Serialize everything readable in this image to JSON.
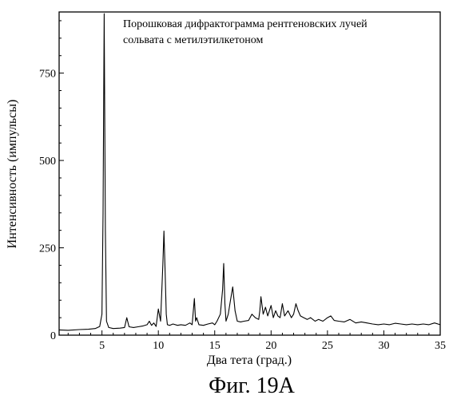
{
  "chart_data": {
    "type": "line",
    "annotation_lines": [
      "Порошковая дифрактограмма рентгеновских лучей",
      "сольвата с метилэтилкетоном"
    ],
    "xlabel": "Два тета (град.)",
    "ylabel": "Интенсивность (импульсы)",
    "figure_caption": "Фиг. 19А",
    "xlim": [
      1.2,
      35
    ],
    "ylim": [
      0,
      925
    ],
    "x_ticks": [
      5,
      10,
      15,
      20,
      25,
      30,
      35
    ],
    "y_ticks": [
      0,
      250,
      500,
      750
    ],
    "grid": false,
    "series": [
      {
        "color": "#000000",
        "x": [
          1.2,
          2.0,
          3.0,
          3.8,
          4.4,
          4.8,
          5.0,
          5.1,
          5.2,
          5.3,
          5.4,
          5.6,
          6.0,
          6.6,
          7.0,
          7.2,
          7.4,
          7.8,
          8.2,
          8.6,
          9.0,
          9.2,
          9.4,
          9.6,
          9.8,
          10.0,
          10.2,
          10.4,
          10.5,
          10.6,
          10.7,
          10.8,
          11.0,
          11.3,
          11.7,
          12.0,
          12.4,
          12.8,
          13.0,
          13.2,
          13.3,
          13.4,
          13.6,
          14.0,
          14.4,
          14.8,
          15.0,
          15.2,
          15.5,
          15.7,
          15.8,
          15.9,
          16.0,
          16.2,
          16.4,
          16.6,
          16.8,
          17.0,
          17.3,
          17.6,
          18.0,
          18.3,
          18.6,
          18.9,
          19.0,
          19.1,
          19.3,
          19.5,
          19.7,
          20.0,
          20.2,
          20.4,
          20.6,
          20.8,
          21.0,
          21.2,
          21.5,
          21.8,
          22.0,
          22.2,
          22.4,
          22.6,
          22.9,
          23.2,
          23.5,
          23.9,
          24.2,
          24.6,
          25.0,
          25.3,
          25.6,
          26.0,
          26.5,
          27.0,
          27.5,
          28.0,
          28.5,
          29.0,
          29.5,
          30.0,
          30.5,
          31.0,
          31.5,
          32.0,
          32.5,
          33.0,
          33.5,
          34.0,
          34.5,
          35.0
        ],
        "y": [
          15,
          14,
          16,
          17,
          19,
          25,
          60,
          350,
          920,
          300,
          40,
          22,
          19,
          20,
          22,
          50,
          24,
          22,
          24,
          26,
          30,
          40,
          28,
          35,
          25,
          75,
          40,
          200,
          298,
          180,
          60,
          30,
          28,
          32,
          28,
          30,
          28,
          35,
          30,
          105,
          40,
          50,
          30,
          28,
          32,
          35,
          30,
          40,
          60,
          130,
          205,
          90,
          40,
          60,
          100,
          138,
          70,
          40,
          38,
          40,
          42,
          60,
          50,
          45,
          70,
          110,
          60,
          80,
          55,
          85,
          50,
          70,
          55,
          50,
          90,
          55,
          70,
          50,
          60,
          90,
          70,
          55,
          50,
          45,
          50,
          40,
          45,
          40,
          50,
          55,
          42,
          40,
          38,
          45,
          35,
          38,
          35,
          32,
          30,
          32,
          30,
          34,
          32,
          30,
          32,
          30,
          32,
          30,
          35,
          30
        ]
      }
    ]
  }
}
